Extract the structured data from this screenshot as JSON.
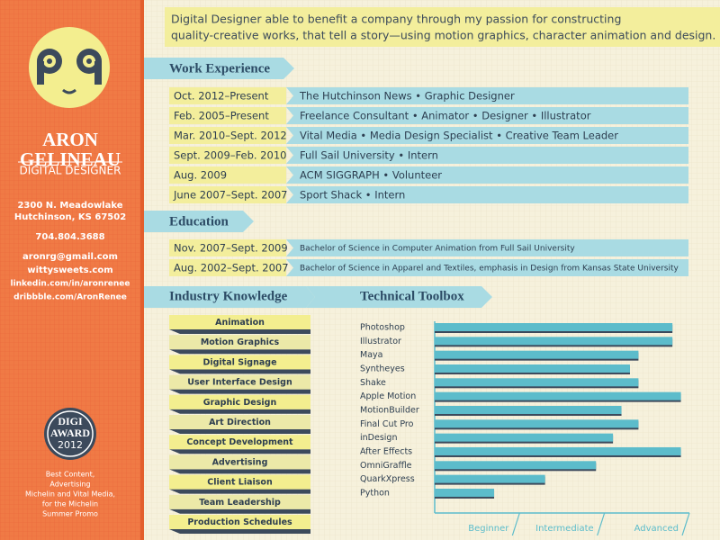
{
  "sidebar": {
    "name": [
      "ARON",
      "GELINEAU"
    ],
    "role": "DIGITAL DESIGNER",
    "address": [
      "2300 N. Meadowlake",
      "Hutchinson, KS 67502"
    ],
    "phone": "704.804.3688",
    "links": [
      "aronrg@gmail.com",
      "wittysweets.com",
      "linkedin.com/in/aronrenee",
      "dribbble.com/AronRenee"
    ],
    "award": [
      "DIGI",
      "AWARD",
      "2012"
    ],
    "award_note": [
      "Best Content,",
      "Advertising",
      "Michelin and Vital Media,",
      "for the Michelin",
      "Summer Promo"
    ]
  },
  "summary": [
    "Digital Designer able to benefit a company through my passion for constructing",
    "quality-creative works, that tell a story—using motion graphics, character animation and design."
  ],
  "work": {
    "heading": "Work Experience",
    "rows": [
      {
        "date": "Oct. 2012–Present",
        "text": "The Hutchinson News  •  Graphic Designer"
      },
      {
        "date": "Feb. 2005–Present",
        "text": "Freelance Consultant  •  Animator  •  Designer  •  Illustrator"
      },
      {
        "date": "Mar. 2010–Sept. 2012",
        "text": "Vital Media  •  Media Design Specialist  •  Creative Team Leader"
      },
      {
        "date": "Sept. 2009–Feb. 2010",
        "text": "Full Sail University  •  Intern"
      },
      {
        "date": "Aug. 2009",
        "text": "ACM SIGGRAPH  •  Volunteer"
      },
      {
        "date": "June 2007–Sept. 2007",
        "text": "Sport Shack  •  Intern"
      }
    ]
  },
  "education": {
    "heading": "Education",
    "rows": [
      {
        "date": "Nov. 2007–Sept. 2009",
        "text": "Bachelor of Science in Computer Animation from Full Sail University"
      },
      {
        "date": "Aug. 2002–Sept. 2007",
        "text": "Bachelor of Science in Apparel and Textiles, emphasis in Design from Kansas State University"
      }
    ]
  },
  "industry": {
    "heading": "Industry Knowledge",
    "items": [
      "Animation",
      "Motion Graphics",
      "Digital Signage",
      "User Interface Design",
      "Graphic Design",
      "Art Direction",
      "Concept Development",
      "Advertising",
      "Client Liaison",
      "Team Leadership",
      "Production Schedules"
    ]
  },
  "chart_data": {
    "type": "bar",
    "orientation": "horizontal",
    "title": "Technical Toolbox",
    "categories": [
      "Photoshop",
      "Illustrator",
      "Maya",
      "Syntheyes",
      "Shake",
      "Apple Motion",
      "MotionBuilder",
      "Final Cut Pro",
      "inDesign",
      "After Effects",
      "OmniGraffle",
      "QuarkXpress",
      "Python"
    ],
    "values": [
      2.8,
      2.8,
      2.4,
      2.3,
      2.4,
      2.9,
      2.2,
      2.4,
      2.1,
      2.9,
      1.9,
      1.3,
      0.7
    ],
    "color": "#5cbccb",
    "xlim": [
      0,
      3
    ],
    "xticks": [
      {
        "value": 1,
        "label": "Beginner"
      },
      {
        "value": 2,
        "label": "Intermediate"
      },
      {
        "value": 3,
        "label": "Advanced"
      }
    ]
  }
}
